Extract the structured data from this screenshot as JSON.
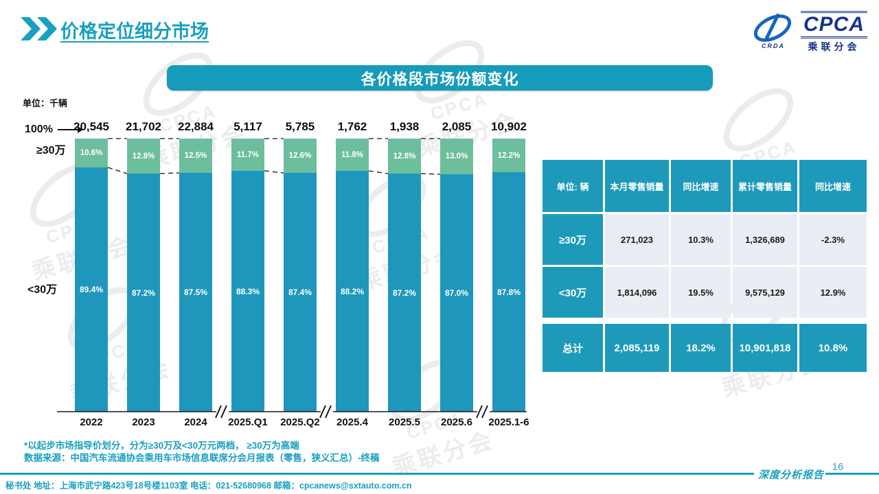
{
  "page": {
    "title": "价格定位细分市场",
    "page_number": "16",
    "report_label": "深度分析报告",
    "footer_contact": "秘书处  地址：上海市武宁路423号18号楼1103室 电话：021-52680968   邮箱：cpcanews@sxtauto.com.cn"
  },
  "logo": {
    "acronym": "CPCA",
    "sub": "乘联分会",
    "crda": "CRDA"
  },
  "watermark": {
    "acronym": "CPCA",
    "text": "乘联分会"
  },
  "banner": {
    "title": "各价格段市场份额变化"
  },
  "chart_data": {
    "type": "bar",
    "stacked_percent": true,
    "title": "各价格段市场份额变化",
    "unit_label": "单位：千辆",
    "axis_100_label": "100%",
    "segment_top_label": "≥30万",
    "segment_bottom_label": "<30万",
    "categories": [
      "2022",
      "2023",
      "2024",
      "2025.Q1",
      "2025.Q2",
      "2025.4",
      "2025.5",
      "2025.6",
      "2025.1-6"
    ],
    "totals": [
      "20,545",
      "21,702",
      "22,884",
      "5,117",
      "5,785",
      "1,762",
      "1,938",
      "2,085",
      "10,902"
    ],
    "series": [
      {
        "name": "≥30万",
        "color": "#6cbe9c",
        "values": [
          10.6,
          12.8,
          12.5,
          11.7,
          12.6,
          11.8,
          12.8,
          13.0,
          12.2
        ]
      },
      {
        "name": "<30万",
        "color": "#1f96bb",
        "values": [
          89.4,
          87.2,
          87.5,
          88.3,
          87.4,
          88.2,
          87.2,
          87.0,
          87.8
        ]
      }
    ],
    "ylim": [
      0,
      100
    ],
    "grid": false,
    "legend_position": "none",
    "connected_pairs": [
      [
        0,
        1
      ],
      [
        1,
        2
      ],
      [
        3,
        4
      ],
      [
        5,
        6
      ],
      [
        6,
        7
      ]
    ],
    "axis_breaks_after": [
      2,
      4,
      7
    ]
  },
  "table": {
    "headers": [
      "单位: 辆",
      "本月零售销量",
      "同比增速",
      "累计零售销量",
      "同比增速"
    ],
    "rows": [
      {
        "label": "≥30万",
        "cells": [
          "271,023",
          "10.3%",
          "1,326,689",
          "-2.3%"
        ],
        "total": false
      },
      {
        "label": "<30万",
        "cells": [
          "1,814,096",
          "19.5%",
          "9,575,129",
          "12.9%"
        ],
        "total": false
      },
      {
        "label": "总计",
        "cells": [
          "2,085,119",
          "18.2%",
          "10,901,818",
          "10.8%"
        ],
        "total": true
      }
    ]
  },
  "notes": {
    "line1": "*以起步市场指导价划分，分为≥30万及<30万元两档， ≥30万为高端",
    "line2": "数据来源：中国汽车流通协会乘用车市场信息联席分会月报表（零售，狭义汇总）-终稿"
  },
  "colors": {
    "accent_teal": "#18a0c0",
    "bar_teal": "#1f96bb",
    "bar_green": "#6cbe9c",
    "banner_teal": "#169bbb",
    "table_teal": "#1d9aba",
    "table_light_cell": "#e9eef4",
    "logo_blue": "#16338e"
  }
}
